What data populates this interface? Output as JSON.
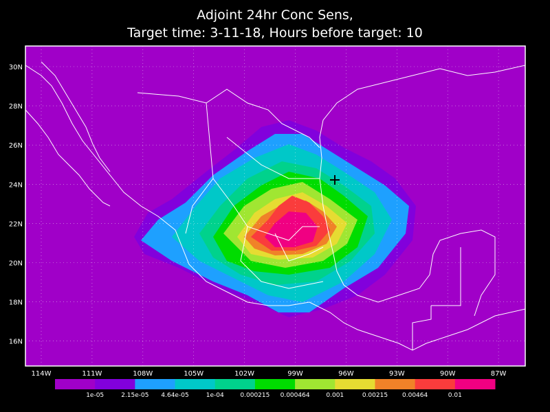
{
  "header": {
    "title": "Adjoint 24hr Conc Sens,",
    "subtitle": "Target time: 3-11-18, Hours before target: 10"
  },
  "map": {
    "lat_labels": [
      "30N",
      "28N",
      "26N",
      "24N",
      "22N",
      "20N",
      "18N",
      "16N"
    ],
    "lon_labels": [
      "114W",
      "111W",
      "108W",
      "105W",
      "102W",
      "99W",
      "96W",
      "93W",
      "90W",
      "87W"
    ],
    "grid": true,
    "background_color": "#a000c8",
    "colorbar": {
      "colors": [
        "#a000c8",
        "#8200dc",
        "#1ea0ff",
        "#00c8c8",
        "#00d28c",
        "#00dc00",
        "#a0e632",
        "#e6dc32",
        "#f08228",
        "#fa3c3c",
        "#f00082"
      ],
      "labels": [
        "1e-05",
        "2.15e-05",
        "4.64e-05",
        "1e-04",
        "0.000215",
        "0.000464",
        "0.001",
        "0.00215",
        "0.00464",
        "0.01"
      ]
    }
  }
}
